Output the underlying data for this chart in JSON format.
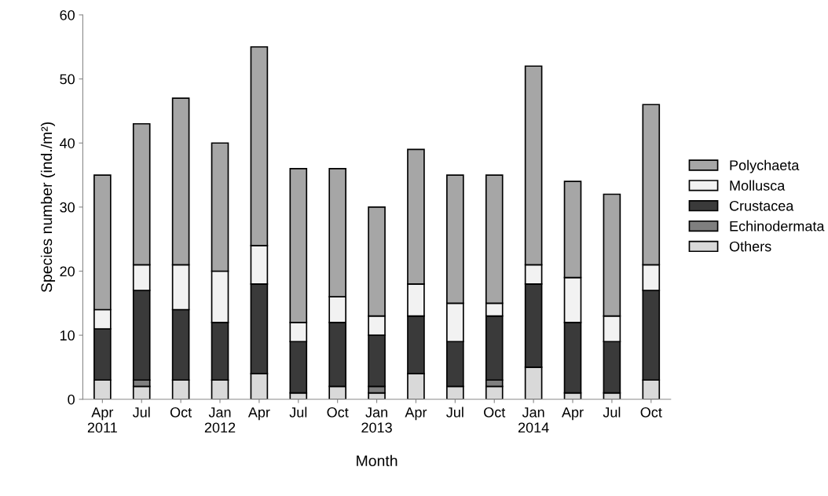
{
  "chart_data": {
    "type": "bar",
    "stacked": true,
    "xlabel": "Month",
    "ylabel": "Species number (ind./m²)",
    "categories": [
      "Apr\n2011",
      "Jul",
      "Oct",
      "Jan\n2012",
      "Apr",
      "Jul",
      "Oct",
      "Jan\n2013",
      "Apr",
      "Jul",
      "Oct",
      "Jan\n2014",
      "Apr",
      "Jul",
      "Oct"
    ],
    "series": [
      {
        "name": "Others",
        "color": "#d9d9d9",
        "values": [
          3,
          2,
          3,
          3,
          4,
          1,
          2,
          1,
          4,
          2,
          2,
          5,
          1,
          1,
          3
        ]
      },
      {
        "name": "Echinodermata",
        "color": "#7f7f7f",
        "values": [
          null,
          1,
          null,
          null,
          null,
          null,
          null,
          1,
          null,
          null,
          1,
          null,
          null,
          null,
          null
        ]
      },
      {
        "name": "Crustacea",
        "color": "#3a3a3a",
        "values": [
          8,
          14,
          11,
          9,
          14,
          8,
          10,
          8,
          9,
          7,
          10,
          13,
          11,
          8,
          14
        ]
      },
      {
        "name": "Mollusca",
        "color": "#f2f2f2",
        "values": [
          3,
          4,
          7,
          8,
          6,
          3,
          4,
          3,
          5,
          6,
          2,
          3,
          7,
          4,
          4
        ]
      },
      {
        "name": "Polychaeta",
        "color": "#a6a6a6",
        "values": [
          21,
          22,
          26,
          20,
          31,
          24,
          20,
          17,
          21,
          20,
          20,
          31,
          15,
          19,
          25
        ]
      }
    ],
    "ylim": [
      0,
      60
    ],
    "yticks": [
      0,
      10,
      20,
      30,
      40,
      50,
      60
    ],
    "grid": false,
    "legend": "right"
  }
}
